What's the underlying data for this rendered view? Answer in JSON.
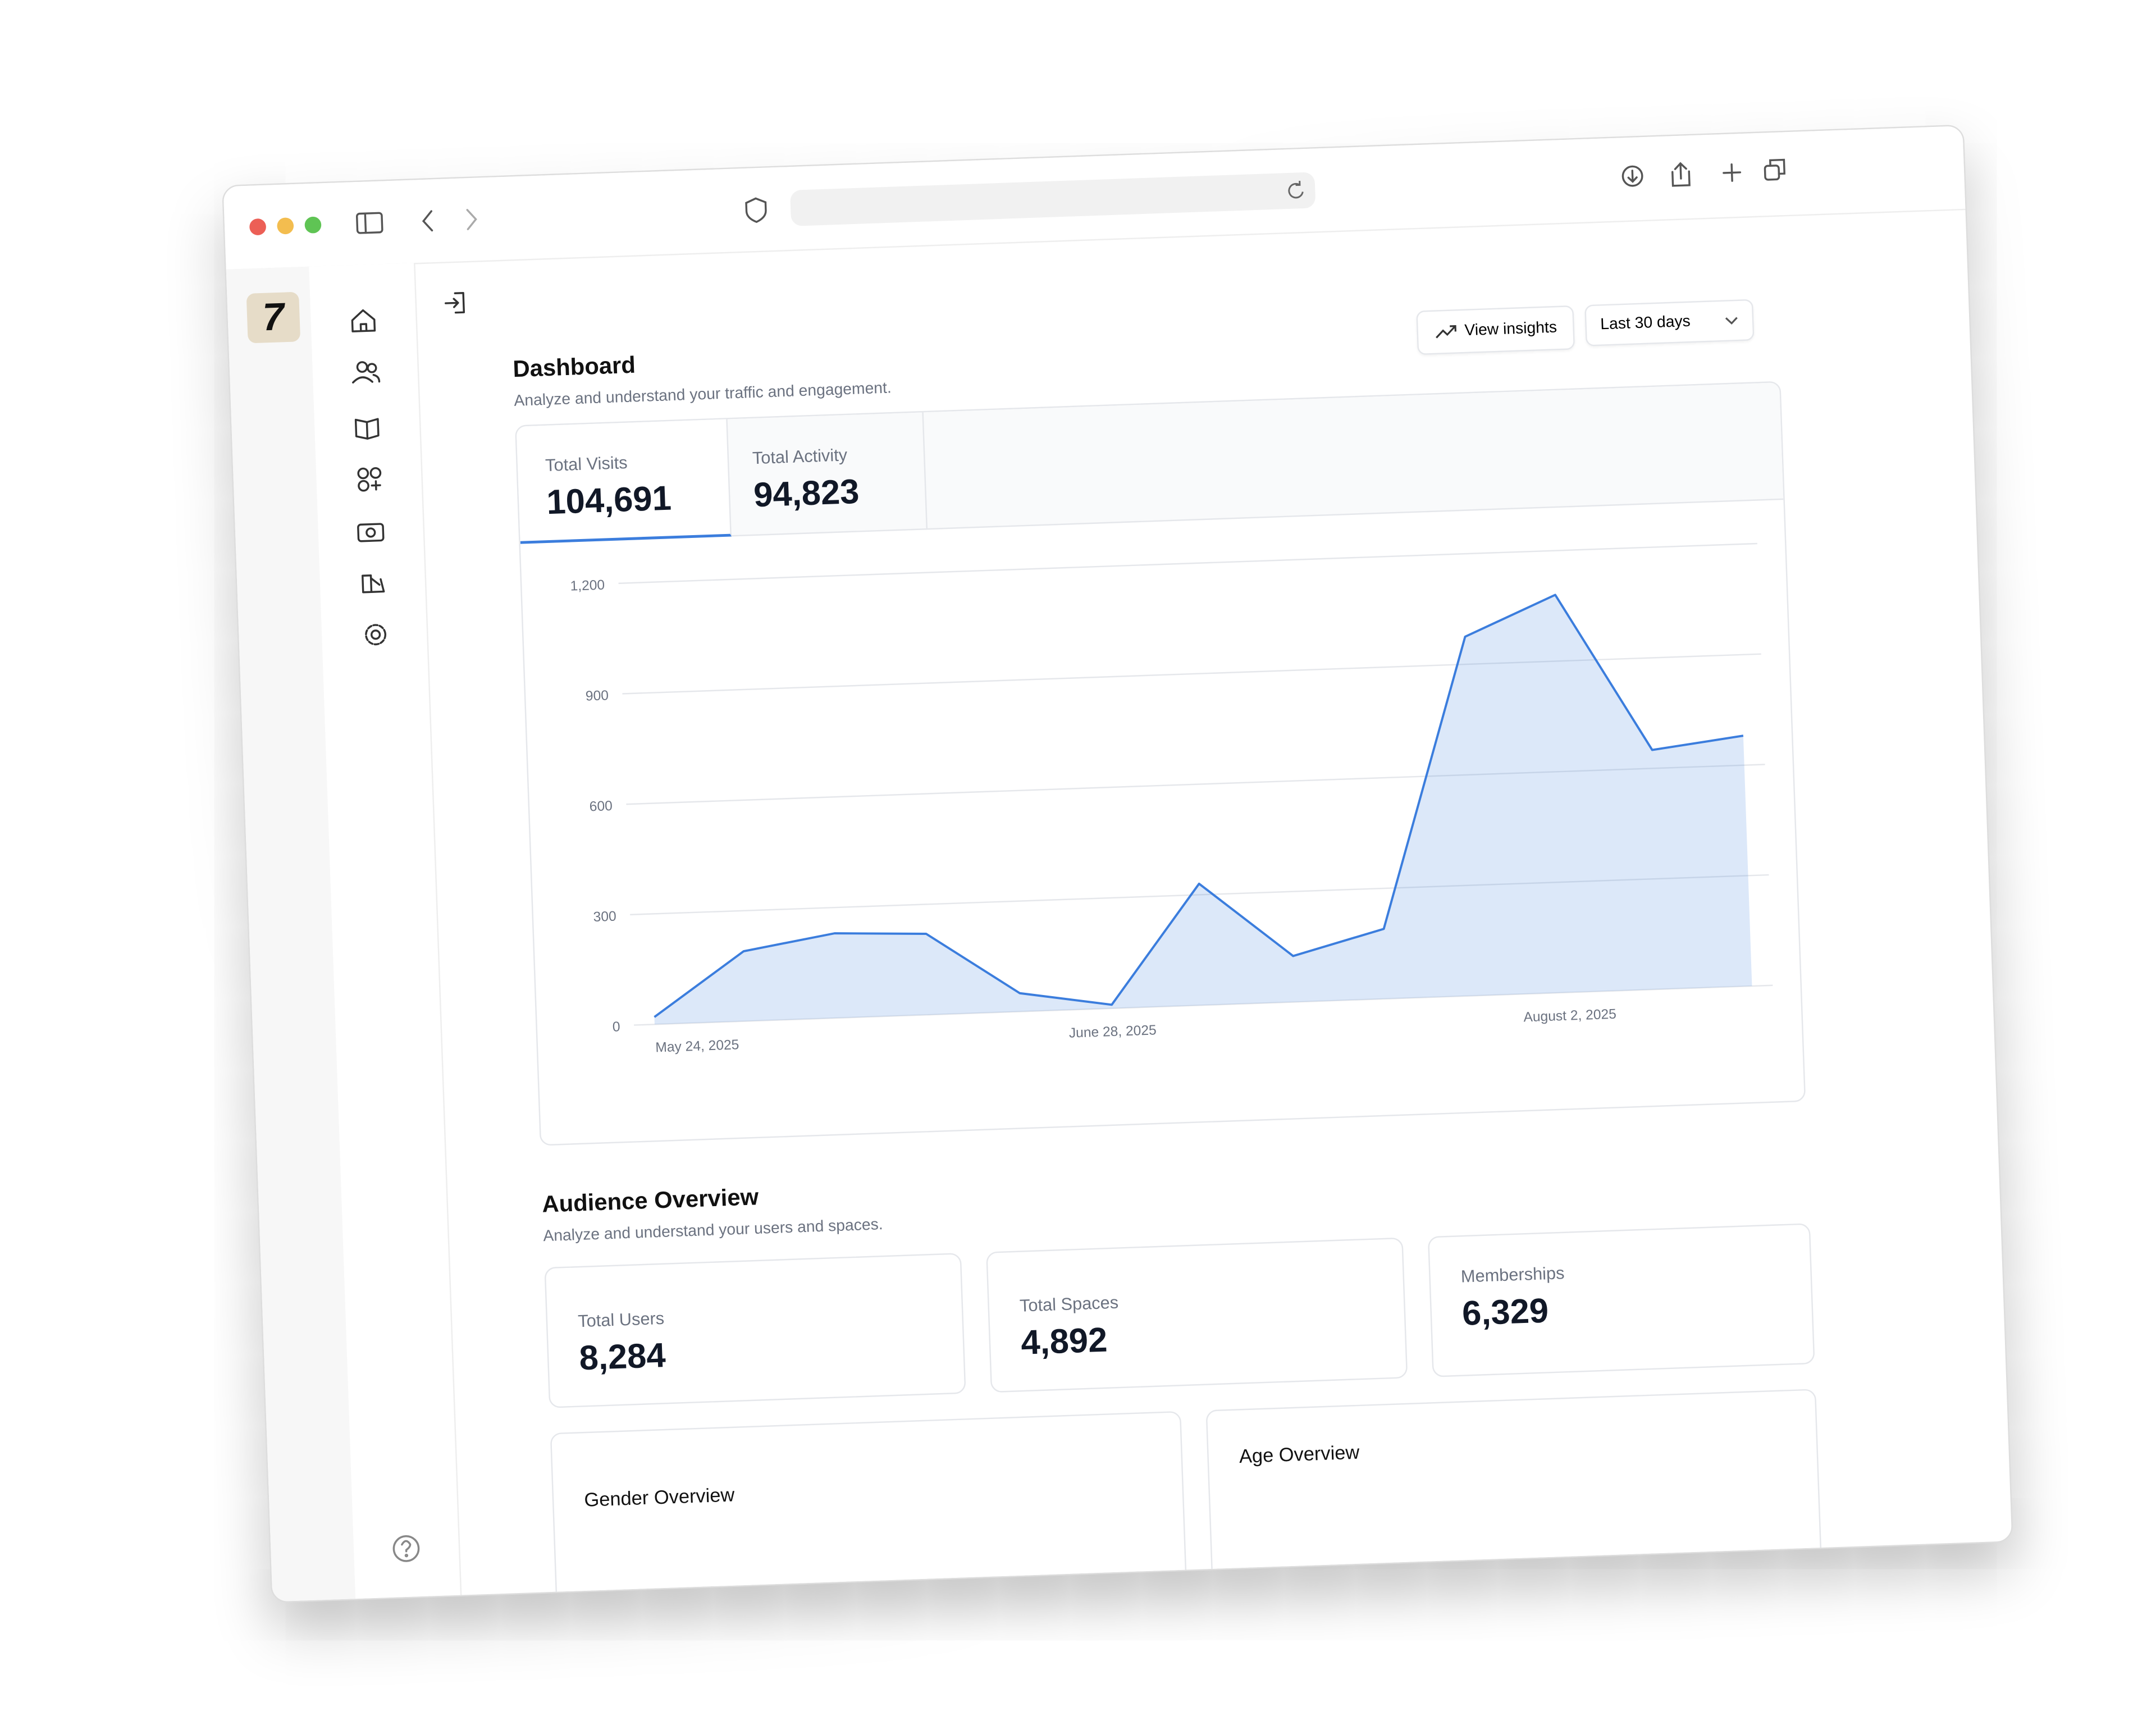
{
  "sidebar": {
    "logo": "7"
  },
  "header": {
    "title": "Dashboard",
    "subtitle": "Analyze and understand your traffic and engagement.",
    "actions": [
      "View insights",
      "Last 30 days"
    ]
  },
  "tabs": [
    {
      "label": "Total Visits",
      "value": "104,691"
    },
    {
      "label": "Total Activity",
      "value": "94,823"
    }
  ],
  "chart_data": {
    "type": "area",
    "categories": [
      "May 24, 2025",
      null,
      null,
      null,
      null,
      "June 28, 2025",
      null,
      null,
      null,
      null,
      "August 2, 2025",
      null,
      null
    ],
    "values": [
      20,
      190,
      230,
      220,
      50,
      10,
      330,
      125,
      190,
      975,
      1080,
      650,
      680
    ],
    "color": "#3b7ddd",
    "ylim": [
      0,
      1200
    ],
    "yticks": [
      0,
      300,
      600,
      900,
      {
        "value": 1200,
        "label": "1,200"
      }
    ],
    "grid": true
  },
  "audience": {
    "title": "Audience Overview",
    "subtitle": "Analyze and understand your users and spaces.",
    "stats": [
      {
        "label": "Total Users",
        "value": "8,284"
      },
      {
        "label": "Total Spaces",
        "value": "4,892"
      },
      {
        "label": "Memberships",
        "value": "6,329"
      }
    ],
    "panels": [
      "Gender Overview",
      "Age Overview"
    ]
  }
}
